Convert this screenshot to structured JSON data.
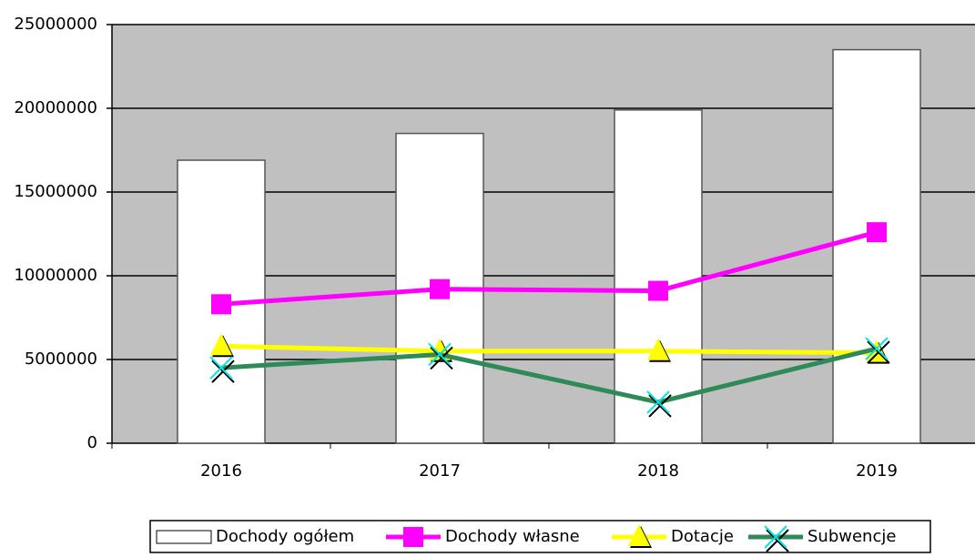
{
  "chart_data": {
    "type": "bar",
    "categories": [
      "2016",
      "2017",
      "2018",
      "2019"
    ],
    "ylim": [
      0,
      25000000
    ],
    "yticks": [
      0,
      5000000,
      10000000,
      15000000,
      20000000,
      25000000
    ],
    "grid": true,
    "legend": "bottom",
    "series": [
      {
        "name": "Dochody ogółem",
        "type": "bar",
        "color": "#ffffff",
        "values": [
          16900000,
          18500000,
          19900000,
          23500000
        ]
      },
      {
        "name": "Dochody własne",
        "type": "line",
        "marker": "square",
        "color": "#ff00ff",
        "values": [
          8300000,
          9200000,
          9100000,
          12600000
        ]
      },
      {
        "name": "Dotacje",
        "type": "line",
        "marker": "triangle",
        "color": "#ffff00",
        "values": [
          5800000,
          5500000,
          5500000,
          5400000
        ]
      },
      {
        "name": "Subwencje",
        "type": "line",
        "marker": "x",
        "color": "#2e8b57",
        "values": [
          4500000,
          5300000,
          2450000,
          5650000
        ]
      }
    ]
  }
}
